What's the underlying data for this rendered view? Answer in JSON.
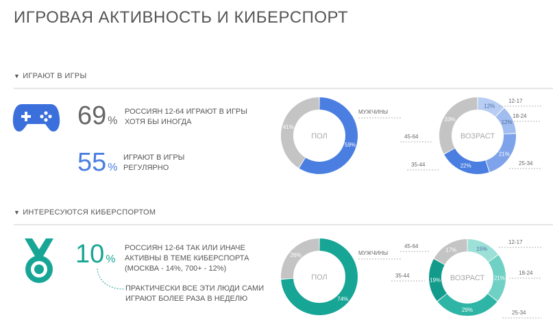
{
  "page": {
    "title": "ИГРОВАЯ АКТИВНОСТЬ И КИБЕРСПОРТ"
  },
  "gaming": {
    "section_title": "ИГРАЮТ В ИГРЫ",
    "icon": "gamepad-icon",
    "stat1": {
      "value": "69",
      "unit": "%",
      "text_lines": [
        "РОССИЯН 12-64 ИГРАЮТ В ИГРЫ",
        "ХОТЯ БЫ ИНОГДА"
      ]
    },
    "stat2": {
      "value": "55",
      "unit": "%",
      "text_lines": [
        "ИГРАЮТ В ИГРЫ",
        "РЕГУЛЯРНО"
      ]
    },
    "colors": {
      "accent": "#4a7ee0",
      "light": "#a9c2f0",
      "mid": "#7ea3ea",
      "dark": "#3f6fd6",
      "gray": "#c4c4c4",
      "icon": "#3a6fdc",
      "stat1": "#666666"
    }
  },
  "esports": {
    "section_title": "ИНТЕРЕСУЮТСЯ КИБЕРСПОРТОМ",
    "icon": "medal-icon",
    "stat1": {
      "value": "10",
      "unit": "%",
      "text_lines": [
        "РОССИЯН 12-64 ТАК ИЛИ ИНАЧЕ",
        "АКТИВНЫ В ТЕМЕ КИБЕРСПОРТА",
        "(МОСКВА - 14%, 700+ - 12%)"
      ]
    },
    "note_lines": [
      "ПРАКТИЧЕСКИ ВСЕ ЭТИ ЛЮДИ САМИ",
      "ИГРАЮТ БОЛЕЕ РАЗА В НЕДЕЛЮ"
    ],
    "colors": {
      "accent": "#17a595",
      "light": "#8fdcd2",
      "mid": "#4dc3b6",
      "dark": "#129a8b",
      "gray": "#c4c4c4",
      "icon": "#17a595"
    }
  },
  "chart_data": [
    {
      "type": "pie",
      "title": "ПОЛ",
      "segments": [
        {
          "label": "МУЖЧИНЫ",
          "value": 59,
          "display": "59%",
          "color": "#4a7ee0"
        },
        {
          "label": "",
          "value": 41,
          "display": "41%",
          "color": "#c4c4c4"
        }
      ]
    },
    {
      "type": "pie",
      "title": "ВОЗРАСТ",
      "segments": [
        {
          "label": "12-17",
          "value": 12,
          "display": "12%",
          "color": "#b8cdf3"
        },
        {
          "label": "18-24",
          "value": 12,
          "display": "12%",
          "color": "#a1bdf0"
        },
        {
          "label": "25-34",
          "value": 21,
          "display": "21%",
          "color": "#7ea3ea"
        },
        {
          "label": "35-44",
          "value": 22,
          "display": "22%",
          "color": "#4a7ee0"
        },
        {
          "label": "45-64",
          "value": 33,
          "display": "33%",
          "color": "#c4c4c4"
        }
      ]
    },
    {
      "type": "pie",
      "title": "ПОЛ",
      "segments": [
        {
          "label": "МУЖЧИНЫ",
          "value": 74,
          "display": "74%",
          "color": "#17a595"
        },
        {
          "label": "",
          "value": 26,
          "display": "26%",
          "color": "#c4c4c4"
        }
      ]
    },
    {
      "type": "pie",
      "title": "ВОЗРАСТ",
      "segments": [
        {
          "label": "12-17",
          "value": 15,
          "display": "15%",
          "color": "#9de0d7"
        },
        {
          "label": "18-24",
          "value": 21,
          "display": "21%",
          "color": "#6fd0c4"
        },
        {
          "label": "25-34",
          "value": 29,
          "display": "29%",
          "color": "#2fb5a6"
        },
        {
          "label": "35-44",
          "value": 19,
          "display": "19%",
          "color": "#129a8b"
        },
        {
          "label": "45-64",
          "value": 17,
          "display": "17%",
          "color": "#c4c4c4"
        }
      ]
    }
  ]
}
